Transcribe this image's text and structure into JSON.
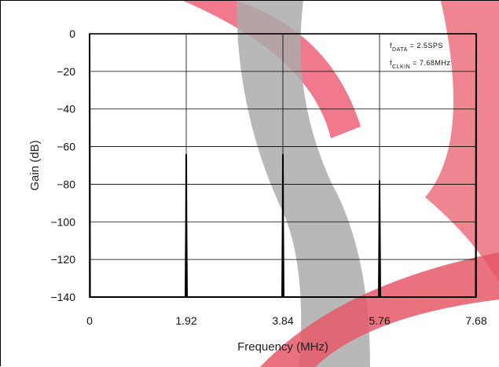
{
  "chart_data": {
    "type": "line",
    "title": "",
    "xlabel": "Frequency (MHz)",
    "ylabel": "Gain (dB)",
    "xlim": [
      0,
      7.68
    ],
    "ylim": [
      -140,
      0
    ],
    "x_ticks": [
      0,
      1.92,
      3.84,
      5.76,
      7.68
    ],
    "x_tick_labels": [
      "0",
      "1.92",
      "3.84",
      "5.76",
      "7.68"
    ],
    "y_ticks": [
      0,
      -20,
      -40,
      -60,
      -80,
      -100,
      -120,
      -140
    ],
    "y_tick_labels": [
      "0",
      "−20",
      "−40",
      "−60",
      "−80",
      "−100",
      "−120",
      "−140"
    ],
    "grid": true,
    "series": [
      {
        "x": [
          0,
          0.005,
          0.01,
          1.905,
          1.915,
          1.92,
          1.925,
          1.935,
          3.825,
          3.835,
          3.84,
          3.845,
          3.855,
          5.745,
          5.755,
          5.76,
          5.765,
          5.775,
          7.67,
          7.675,
          7.68
        ],
        "y": [
          0,
          -60,
          -140,
          -140,
          -100,
          -64,
          -100,
          -140,
          -140,
          -100,
          -64,
          -100,
          -140,
          -140,
          -100,
          -78,
          -100,
          -140,
          -140,
          -60,
          0
        ]
      }
    ],
    "annotations": [
      {
        "main": "f",
        "sub": "DATA",
        "rest": " = 2.5SPS"
      },
      {
        "main": "f",
        "sub": "CLKIN",
        "rest": " = 7.68MHz"
      }
    ],
    "colors": {
      "line": "#000000",
      "grid": "#000000",
      "watermark_red": "#e23b4e",
      "watermark_gray": "#9a9a9a"
    }
  }
}
